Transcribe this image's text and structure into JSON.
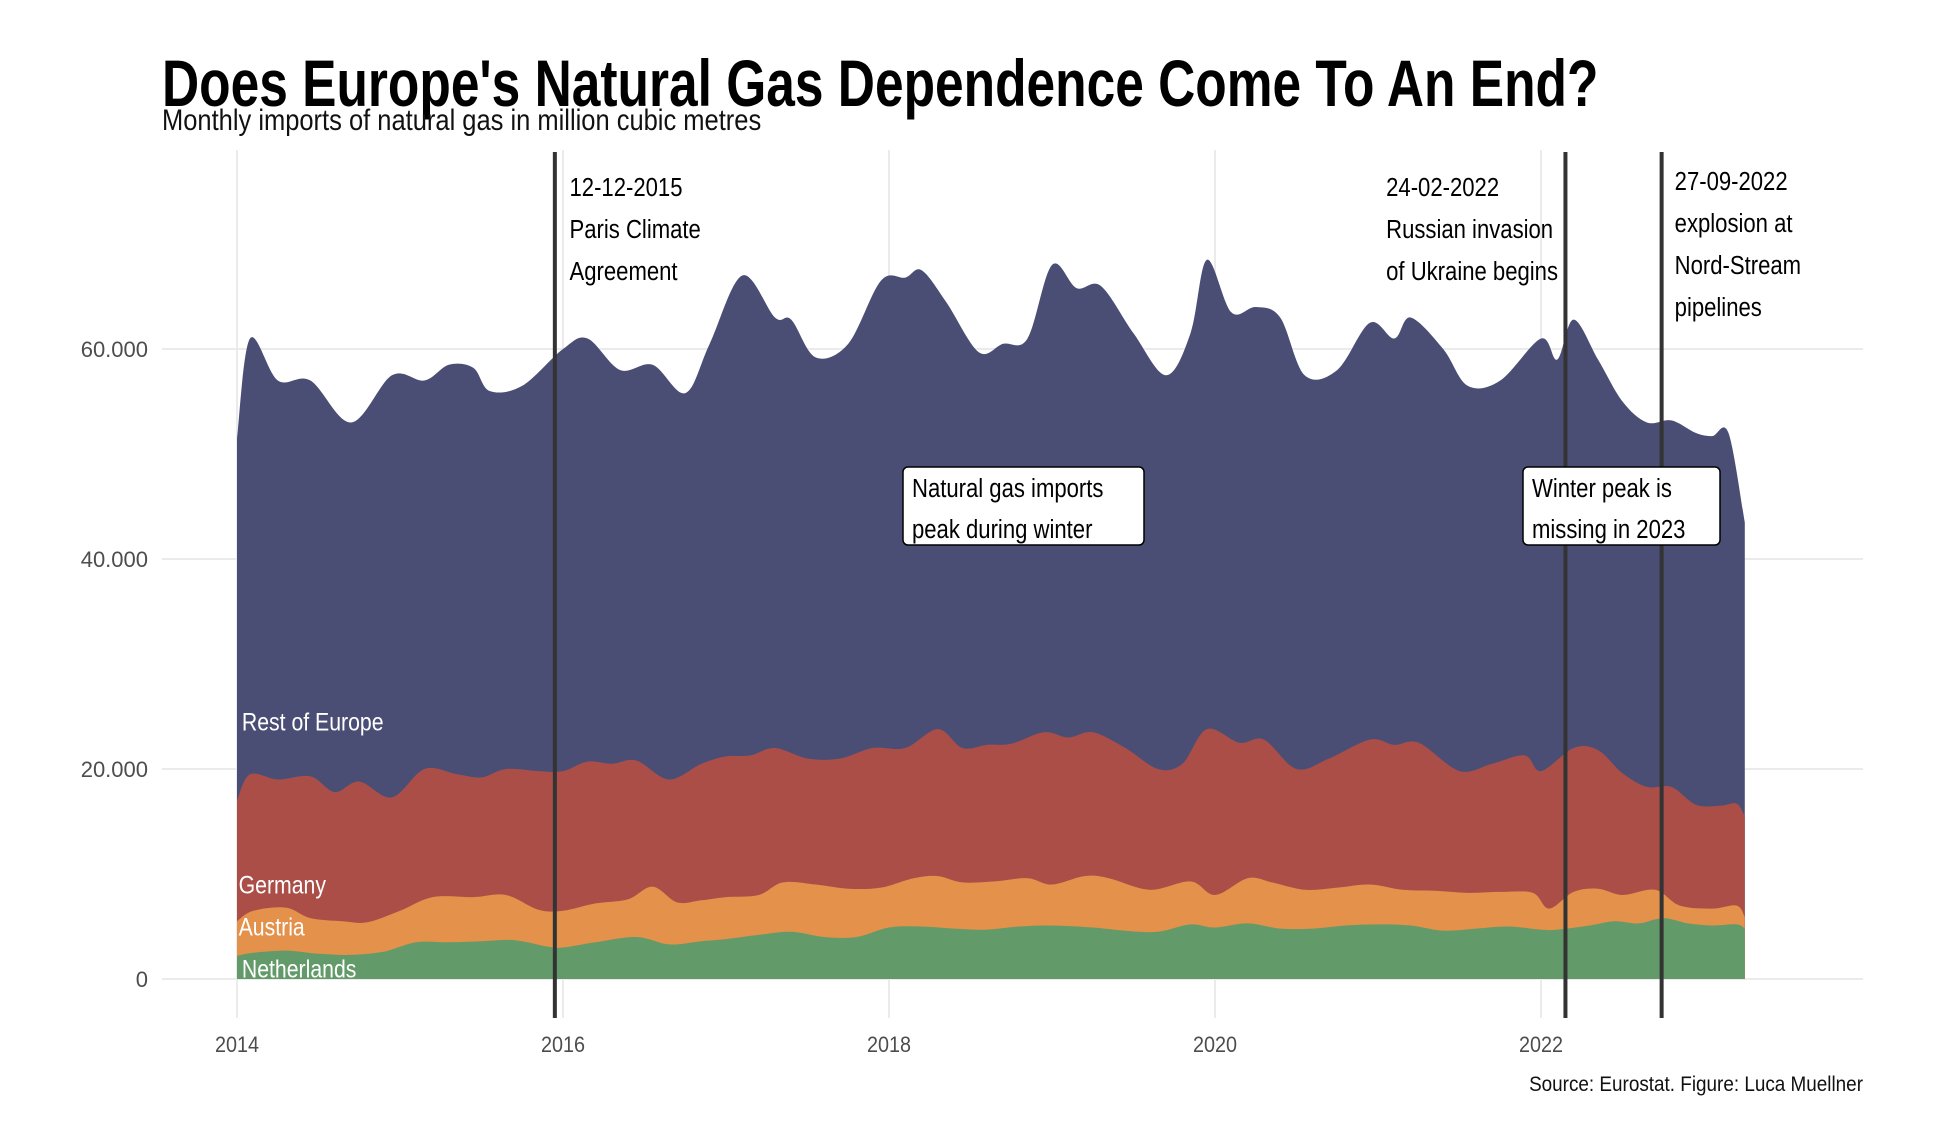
{
  "chart_data": {
    "type": "area",
    "stacked": true,
    "title": "Does Europe's Natural Gas Dependence Come To An End?",
    "subtitle": "Monthly imports of natural gas in million cubic metres",
    "caption": "Source: Eurostat. Figure: Luca Muellner",
    "xlabel": "",
    "ylabel": "",
    "xlim": [
      2013.8,
      2023.95
    ],
    "ylim": [
      -4500,
      75000
    ],
    "x_ticks": [
      2014,
      2016,
      2018,
      2020,
      2022
    ],
    "x_tick_labels": [
      "2014",
      "2016",
      "2018",
      "2020",
      "2022"
    ],
    "y_ticks": [
      0,
      20000,
      40000,
      60000
    ],
    "y_tick_labels": [
      "0",
      "20.000",
      "40.000",
      "60.000"
    ],
    "grid": true,
    "legend": "inline-left",
    "note": "Series given as stacked upper boundary (cumulative) in million cubic metres at time (decimal year).",
    "series": [
      {
        "name": "Rest of Europe",
        "color": "#4a4e75",
        "stack_top": [
          [
            2014.0,
            51500
          ],
          [
            2014.08,
            61000
          ],
          [
            2014.25,
            57000
          ],
          [
            2014.45,
            57000
          ],
          [
            2014.7,
            53000
          ],
          [
            2014.95,
            57500
          ],
          [
            2015.15,
            57000
          ],
          [
            2015.3,
            58500
          ],
          [
            2015.45,
            58200
          ],
          [
            2015.55,
            56000
          ],
          [
            2015.75,
            56500
          ],
          [
            2016.0,
            60000
          ],
          [
            2016.15,
            61000
          ],
          [
            2016.35,
            58000
          ],
          [
            2016.55,
            58500
          ],
          [
            2016.75,
            55800
          ],
          [
            2016.9,
            60500
          ],
          [
            2017.1,
            67000
          ],
          [
            2017.3,
            63000
          ],
          [
            2017.4,
            62800
          ],
          [
            2017.55,
            59200
          ],
          [
            2017.75,
            60500
          ],
          [
            2017.95,
            66500
          ],
          [
            2018.1,
            66800
          ],
          [
            2018.2,
            67500
          ],
          [
            2018.35,
            64500
          ],
          [
            2018.55,
            59700
          ],
          [
            2018.7,
            60500
          ],
          [
            2018.85,
            61000
          ],
          [
            2019.0,
            68000
          ],
          [
            2019.15,
            65800
          ],
          [
            2019.3,
            66000
          ],
          [
            2019.5,
            61500
          ],
          [
            2019.7,
            57500
          ],
          [
            2019.85,
            61500
          ],
          [
            2019.95,
            68500
          ],
          [
            2020.1,
            63500
          ],
          [
            2020.25,
            64000
          ],
          [
            2020.4,
            63000
          ],
          [
            2020.55,
            57500
          ],
          [
            2020.75,
            58000
          ],
          [
            2020.95,
            62500
          ],
          [
            2021.1,
            61000
          ],
          [
            2021.2,
            63000
          ],
          [
            2021.4,
            60000
          ],
          [
            2021.55,
            56500
          ],
          [
            2021.75,
            57000
          ],
          [
            2022.0,
            61000
          ],
          [
            2022.1,
            59000
          ],
          [
            2022.2,
            62800
          ],
          [
            2022.35,
            59000
          ],
          [
            2022.5,
            55000
          ],
          [
            2022.65,
            53000
          ],
          [
            2022.8,
            53200
          ],
          [
            2022.95,
            52000
          ],
          [
            2023.05,
            51700
          ],
          [
            2023.15,
            52000
          ],
          [
            2023.25,
            43500
          ]
        ]
      },
      {
        "name": "Germany",
        "color": "#ab4e48",
        "stack_top": [
          [
            2014.0,
            17000
          ],
          [
            2014.08,
            19500
          ],
          [
            2014.25,
            19000
          ],
          [
            2014.45,
            19300
          ],
          [
            2014.6,
            17800
          ],
          [
            2014.75,
            18800
          ],
          [
            2014.95,
            17300
          ],
          [
            2015.15,
            20000
          ],
          [
            2015.35,
            19500
          ],
          [
            2015.5,
            19200
          ],
          [
            2015.65,
            20000
          ],
          [
            2015.85,
            19800
          ],
          [
            2016.0,
            19800
          ],
          [
            2016.15,
            20700
          ],
          [
            2016.3,
            20500
          ],
          [
            2016.45,
            20800
          ],
          [
            2016.65,
            19000
          ],
          [
            2016.85,
            20500
          ],
          [
            2017.0,
            21200
          ],
          [
            2017.15,
            21300
          ],
          [
            2017.3,
            22000
          ],
          [
            2017.5,
            21000
          ],
          [
            2017.7,
            21000
          ],
          [
            2017.9,
            22000
          ],
          [
            2018.1,
            22000
          ],
          [
            2018.3,
            23800
          ],
          [
            2018.45,
            22000
          ],
          [
            2018.6,
            22300
          ],
          [
            2018.75,
            22400
          ],
          [
            2018.95,
            23500
          ],
          [
            2019.1,
            23000
          ],
          [
            2019.25,
            23500
          ],
          [
            2019.45,
            22000
          ],
          [
            2019.65,
            20000
          ],
          [
            2019.8,
            20500
          ],
          [
            2019.95,
            23800
          ],
          [
            2020.15,
            22500
          ],
          [
            2020.3,
            22800
          ],
          [
            2020.5,
            20000
          ],
          [
            2020.7,
            21000
          ],
          [
            2020.95,
            22800
          ],
          [
            2021.1,
            22300
          ],
          [
            2021.25,
            22500
          ],
          [
            2021.5,
            19800
          ],
          [
            2021.7,
            20500
          ],
          [
            2021.9,
            21300
          ],
          [
            2022.0,
            19800
          ],
          [
            2022.2,
            22000
          ],
          [
            2022.35,
            21800
          ],
          [
            2022.5,
            19600
          ],
          [
            2022.65,
            18300
          ],
          [
            2022.8,
            18300
          ],
          [
            2022.95,
            16600
          ],
          [
            2023.1,
            16500
          ],
          [
            2023.2,
            16700
          ],
          [
            2023.25,
            15500
          ]
        ]
      },
      {
        "name": "Austria",
        "color": "#e3914b",
        "stack_top": [
          [
            2014.0,
            5500
          ],
          [
            2014.1,
            6500
          ],
          [
            2014.3,
            6800
          ],
          [
            2014.45,
            5800
          ],
          [
            2014.65,
            5500
          ],
          [
            2014.8,
            5400
          ],
          [
            2015.0,
            6500
          ],
          [
            2015.2,
            7800
          ],
          [
            2015.45,
            7800
          ],
          [
            2015.65,
            8000
          ],
          [
            2015.85,
            6600
          ],
          [
            2016.0,
            6500
          ],
          [
            2016.2,
            7200
          ],
          [
            2016.4,
            7600
          ],
          [
            2016.55,
            8800
          ],
          [
            2016.7,
            7300
          ],
          [
            2016.85,
            7500
          ],
          [
            2017.0,
            7800
          ],
          [
            2017.2,
            8000
          ],
          [
            2017.35,
            9200
          ],
          [
            2017.55,
            9000
          ],
          [
            2017.75,
            8600
          ],
          [
            2017.95,
            8700
          ],
          [
            2018.15,
            9600
          ],
          [
            2018.3,
            9800
          ],
          [
            2018.45,
            9200
          ],
          [
            2018.65,
            9300
          ],
          [
            2018.85,
            9600
          ],
          [
            2019.0,
            9000
          ],
          [
            2019.2,
            9800
          ],
          [
            2019.35,
            9600
          ],
          [
            2019.6,
            8500
          ],
          [
            2019.85,
            9300
          ],
          [
            2020.0,
            8000
          ],
          [
            2020.2,
            9600
          ],
          [
            2020.35,
            9200
          ],
          [
            2020.55,
            8500
          ],
          [
            2020.75,
            8700
          ],
          [
            2020.95,
            9000
          ],
          [
            2021.15,
            8500
          ],
          [
            2021.35,
            8400
          ],
          [
            2021.55,
            8200
          ],
          [
            2021.75,
            8300
          ],
          [
            2021.95,
            8200
          ],
          [
            2022.05,
            6700
          ],
          [
            2022.2,
            8300
          ],
          [
            2022.35,
            8600
          ],
          [
            2022.5,
            8000
          ],
          [
            2022.7,
            8500
          ],
          [
            2022.85,
            7000
          ],
          [
            2023.05,
            6700
          ],
          [
            2023.2,
            7000
          ],
          [
            2023.25,
            5900
          ]
        ]
      },
      {
        "name": "Netherlands",
        "color": "#629b69",
        "stack_top": [
          [
            2014.0,
            2200
          ],
          [
            2014.1,
            2500
          ],
          [
            2014.3,
            2700
          ],
          [
            2014.5,
            2400
          ],
          [
            2014.7,
            2300
          ],
          [
            2014.9,
            2600
          ],
          [
            2015.1,
            3500
          ],
          [
            2015.3,
            3500
          ],
          [
            2015.5,
            3600
          ],
          [
            2015.7,
            3700
          ],
          [
            2015.9,
            3100
          ],
          [
            2016.0,
            3000
          ],
          [
            2016.2,
            3500
          ],
          [
            2016.45,
            4000
          ],
          [
            2016.65,
            3300
          ],
          [
            2016.85,
            3600
          ],
          [
            2017.0,
            3800
          ],
          [
            2017.2,
            4200
          ],
          [
            2017.4,
            4500
          ],
          [
            2017.6,
            4000
          ],
          [
            2017.8,
            4000
          ],
          [
            2018.0,
            4900
          ],
          [
            2018.2,
            5000
          ],
          [
            2018.4,
            4800
          ],
          [
            2018.6,
            4700
          ],
          [
            2018.8,
            5000
          ],
          [
            2019.0,
            5100
          ],
          [
            2019.25,
            4900
          ],
          [
            2019.45,
            4600
          ],
          [
            2019.65,
            4500
          ],
          [
            2019.85,
            5200
          ],
          [
            2020.0,
            4900
          ],
          [
            2020.2,
            5300
          ],
          [
            2020.4,
            4800
          ],
          [
            2020.6,
            4800
          ],
          [
            2020.8,
            5100
          ],
          [
            2021.0,
            5200
          ],
          [
            2021.2,
            5100
          ],
          [
            2021.4,
            4600
          ],
          [
            2021.6,
            4800
          ],
          [
            2021.8,
            5000
          ],
          [
            2022.0,
            4700
          ],
          [
            2022.1,
            4700
          ],
          [
            2022.3,
            5100
          ],
          [
            2022.45,
            5500
          ],
          [
            2022.6,
            5300
          ],
          [
            2022.75,
            5800
          ],
          [
            2022.9,
            5300
          ],
          [
            2023.05,
            5100
          ],
          [
            2023.2,
            5200
          ],
          [
            2023.25,
            4800
          ]
        ]
      }
    ],
    "series_labels": [
      {
        "name": "Rest of Europe",
        "x": 2014.03,
        "y": 24500
      },
      {
        "name": "Germany",
        "x": 2014.01,
        "y": 9000
      },
      {
        "name": "Austria",
        "x": 2014.01,
        "y": 5000
      },
      {
        "name": "Netherlands",
        "x": 2014.03,
        "y": 1000
      }
    ],
    "events": [
      {
        "date": "12-12-2015",
        "x": 2015.95,
        "lines": [
          "12-12-2015",
          "Paris Climate",
          "Agreement"
        ],
        "text_x": 2016.04,
        "text_align": "left"
      },
      {
        "date": "24-02-2022",
        "x": 2022.15,
        "lines": [
          "24-02-2022",
          "Russian invasion",
          "of Ukraine begins"
        ],
        "text_x": 2021.05,
        "text_align": "left"
      },
      {
        "date": "27-09-2022",
        "x": 2022.74,
        "lines": [
          "27-09-2022",
          "explosion at",
          "Nord-Stream",
          "pipelines"
        ],
        "text_x": 2022.82,
        "text_align": "left"
      }
    ],
    "annotations": [
      {
        "lines": [
          "Natural gas imports",
          "peak during winter"
        ],
        "x": 2018.1,
        "y": 47000,
        "boxed": true
      },
      {
        "lines": [
          "Winter peak is",
          "missing in 2023"
        ],
        "x": 2021.9,
        "y": 47000,
        "boxed": true
      }
    ]
  }
}
